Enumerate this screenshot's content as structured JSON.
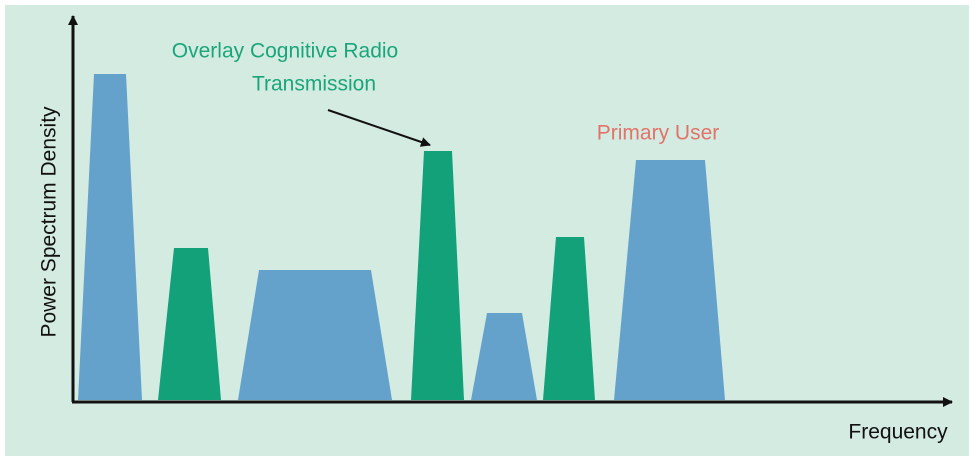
{
  "axes": {
    "x_label": "Frequency",
    "y_label": "Power Spectrum Density"
  },
  "annotations": {
    "overlay": [
      "Overlay Cognitive Radio",
      "Transmission"
    ],
    "primary": "Primary User"
  }
}
